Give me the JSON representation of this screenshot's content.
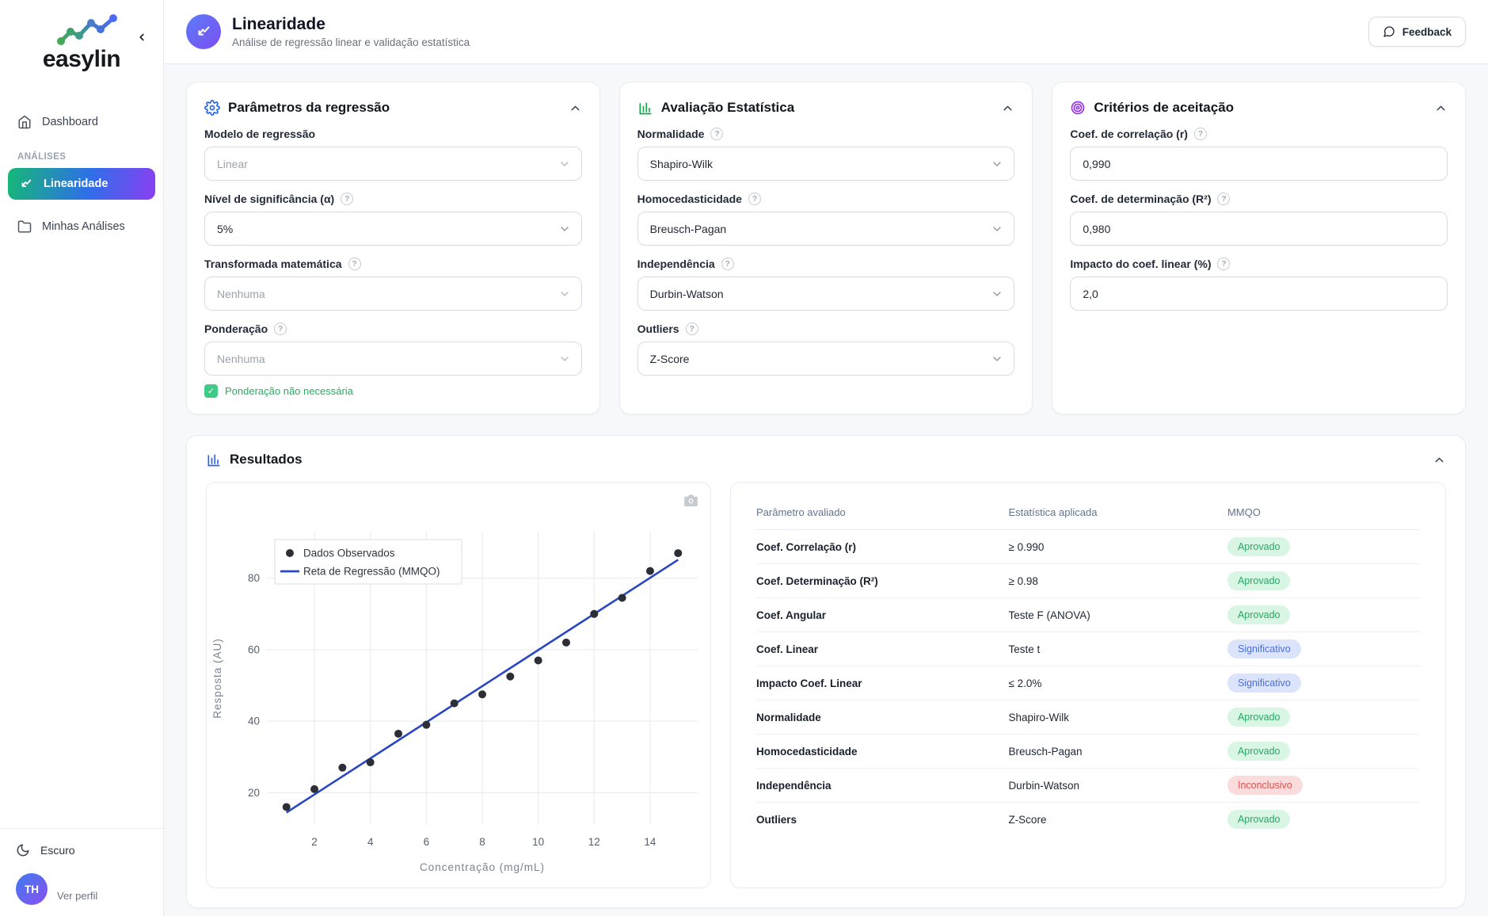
{
  "sidebar": {
    "logo_text": "easylin",
    "dashboard_label": "Dashboard",
    "section_label": "ANÁLISES",
    "linearity_label": "Linearidade",
    "my_analyses_label": "Minhas Análises",
    "theme_toggle_label": "Escuro",
    "avatar_initials": "TH",
    "profile_label": "Ver perfil"
  },
  "header": {
    "title": "Linearidade",
    "subtitle": "Análise de regressão linear e validação estatística",
    "feedback_label": "Feedback"
  },
  "cards": {
    "regression": {
      "title": "Parâmetros da regressão",
      "fields": {
        "model": {
          "label": "Modelo de regressão",
          "value": "Linear"
        },
        "significance": {
          "label": "Nível de significância (α)",
          "value": "5%"
        },
        "transform": {
          "label": "Transformada matemática",
          "value": "Nenhuma"
        },
        "weighting": {
          "label": "Ponderação",
          "value": "Nenhuma"
        }
      },
      "checkbox_label": "Ponderação não necessária"
    },
    "statistics": {
      "title": "Avaliação Estatística",
      "fields": {
        "normality": {
          "label": "Normalidade",
          "value": "Shapiro-Wilk"
        },
        "homoscedasticity": {
          "label": "Homocedasticidade",
          "value": "Breusch-Pagan"
        },
        "independence": {
          "label": "Independência",
          "value": "Durbin-Watson"
        },
        "outliers": {
          "label": "Outliers",
          "value": "Z-Score"
        }
      }
    },
    "criteria": {
      "title": "Critérios de aceitação",
      "fields": {
        "correlation": {
          "label": "Coef. de correlação (r)",
          "value": "0,990"
        },
        "determination": {
          "label": "Coef. de determinação (R²)",
          "value": "0,980"
        },
        "intercept_impact": {
          "label": "Impacto do coef. linear (%)",
          "value": "2,0"
        }
      }
    }
  },
  "results": {
    "title": "Resultados",
    "table": {
      "headers": [
        "Parâmetro avaliado",
        "Estatística aplicada",
        "MMQO"
      ],
      "rows": [
        {
          "param": "Coef. Correlação (r)",
          "stat": "≥ 0.990",
          "badge": "Aprovado",
          "type": "success"
        },
        {
          "param": "Coef. Determinação (R²)",
          "stat": "≥ 0.98",
          "badge": "Aprovado",
          "type": "success"
        },
        {
          "param": "Coef. Angular",
          "stat": "Teste F (ANOVA)",
          "badge": "Aprovado",
          "type": "success"
        },
        {
          "param": "Coef. Linear",
          "stat": "Teste t",
          "badge": "Significativo",
          "type": "info"
        },
        {
          "param": "Impacto Coef. Linear",
          "stat": "≤ 2.0%",
          "badge": "Significativo",
          "type": "info"
        },
        {
          "param": "Normalidade",
          "stat": "Shapiro-Wilk",
          "badge": "Aprovado",
          "type": "success"
        },
        {
          "param": "Homocedasticidade",
          "stat": "Breusch-Pagan",
          "badge": "Aprovado",
          "type": "success"
        },
        {
          "param": "Independência",
          "stat": "Durbin-Watson",
          "badge": "Inconclusivo",
          "type": "danger"
        },
        {
          "param": "Outliers",
          "stat": "Z-Score",
          "badge": "Aprovado",
          "type": "success"
        }
      ]
    }
  },
  "chart_data": {
    "type": "scatter",
    "x": [
      1,
      2,
      3,
      4,
      5,
      6,
      7,
      8,
      9,
      10,
      11,
      12,
      13,
      14,
      15
    ],
    "y": [
      16,
      21,
      27,
      28.5,
      36.5,
      39,
      45,
      47.5,
      52.5,
      57,
      62,
      70,
      74.5,
      82,
      87
    ],
    "series": [
      {
        "name": "Dados Observados",
        "type": "scatter"
      },
      {
        "name": "Reta de Regressão (MMQO)",
        "type": "line"
      }
    ],
    "regression": {
      "slope": 5.05,
      "intercept": 9.4,
      "x_start": 1,
      "x_end": 15
    },
    "xlabel": "Concentração (mg/mL)",
    "ylabel": "Resposta (AU)",
    "x_ticks": [
      2,
      4,
      6,
      8,
      10,
      12,
      14
    ],
    "y_ticks": [
      20,
      40,
      60,
      80
    ],
    "xlim": [
      0.3,
      15.7
    ],
    "ylim": [
      11,
      93
    ],
    "grid": true,
    "legend_position": "top-left",
    "colors": {
      "points": "#2d2f36",
      "line": "#2946c4"
    }
  },
  "theme": {
    "accent_gradient": [
      "#16b877",
      "#2e6fe8",
      "#8a3ff2"
    ],
    "header_icon_gradient": [
      "#5a7cfa",
      "#7d4ef0"
    ],
    "success_bg": "#d9f6e4",
    "success_text": "#27a865",
    "info_bg": "#dbe4fb",
    "info_text": "#4a6ee0",
    "danger_bg": "#fadcdc",
    "danger_text": "#df5050",
    "checkbox_green": "#3ecb85"
  }
}
